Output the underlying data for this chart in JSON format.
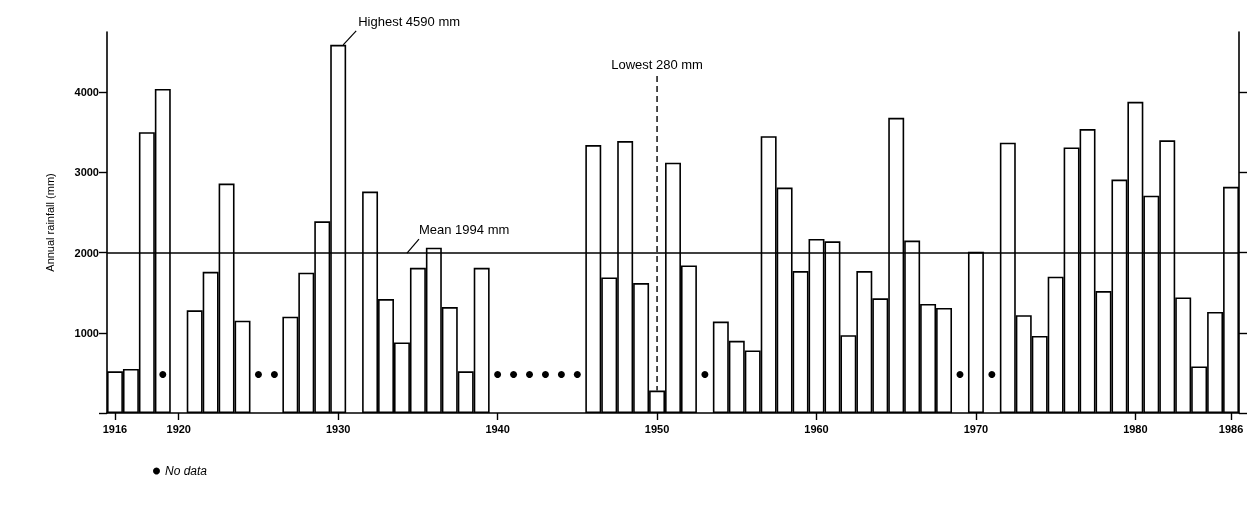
{
  "chart_data": {
    "type": "bar",
    "ylabel": "Annual rainfall (mm)",
    "x": [
      1916,
      1917,
      1918,
      1919,
      1920,
      1921,
      1922,
      1923,
      1924,
      1925,
      1926,
      1927,
      1928,
      1929,
      1930,
      1931,
      1932,
      1933,
      1934,
      1935,
      1936,
      1937,
      1938,
      1939,
      1940,
      1941,
      1942,
      1943,
      1944,
      1945,
      1946,
      1947,
      1948,
      1949,
      1950,
      1951,
      1952,
      1953,
      1954,
      1955,
      1956,
      1957,
      1958,
      1959,
      1960,
      1961,
      1962,
      1963,
      1964,
      1965,
      1966,
      1967,
      1968,
      1969,
      1970,
      1971,
      1972,
      1973,
      1974,
      1975,
      1976,
      1977,
      1978,
      1979,
      1980,
      1981,
      1982,
      1983,
      1984,
      1985,
      1986
    ],
    "series": [
      {
        "color": "#ffffff",
        "values": [
          520,
          550,
          3500,
          4040,
          null,
          1280,
          1760,
          2860,
          1150,
          null,
          null,
          1200,
          1750,
          2390,
          4590,
          null,
          2760,
          1420,
          880,
          1810,
          2060,
          1320,
          520,
          1810,
          null,
          null,
          null,
          null,
          null,
          null,
          3340,
          1690,
          3390,
          1620,
          280,
          3120,
          1840,
          null,
          1140,
          900,
          780,
          3450,
          2810,
          1770,
          2170,
          2140,
          970,
          1770,
          1430,
          3680,
          2150,
          1360,
          1310,
          null,
          2010,
          null,
          3370,
          1220,
          960,
          1700,
          3310,
          3540,
          1520,
          2910,
          3880,
          2710,
          3400,
          1440,
          580,
          1260,
          2820
        ]
      },
      {
        "type": "scatter",
        "name": "No data",
        "color": "#000000",
        "x": [
          1919,
          1925,
          1926,
          1940,
          1941,
          1942,
          1943,
          1944,
          1945,
          1953,
          1969,
          1971
        ],
        "values": [
          480,
          480,
          480,
          480,
          480,
          480,
          480,
          480,
          480,
          480,
          480,
          480
        ]
      }
    ],
    "xlim": [
      1915.5,
      1986.5
    ],
    "xticks": [
      1916,
      1920,
      1930,
      1940,
      1950,
      1960,
      1970,
      1980,
      1986
    ],
    "ylim": [
      0,
      4750
    ],
    "yticks": [
      {
        "value": 0,
        "label": null
      },
      1000,
      2000,
      3000,
      4000
    ],
    "ref_lines": [
      {
        "axis": "y",
        "value": 1994,
        "label": "Mean 1994 mm",
        "color": "#000000"
      }
    ],
    "annotations": [
      {
        "text": "Highest 4590 mm",
        "x": 1930,
        "y": 4590
      },
      {
        "text": "Lowest 280 mm",
        "x": 1950,
        "y": 280
      }
    ],
    "grid": false,
    "legend": "bottom left",
    "marker": "circle"
  }
}
